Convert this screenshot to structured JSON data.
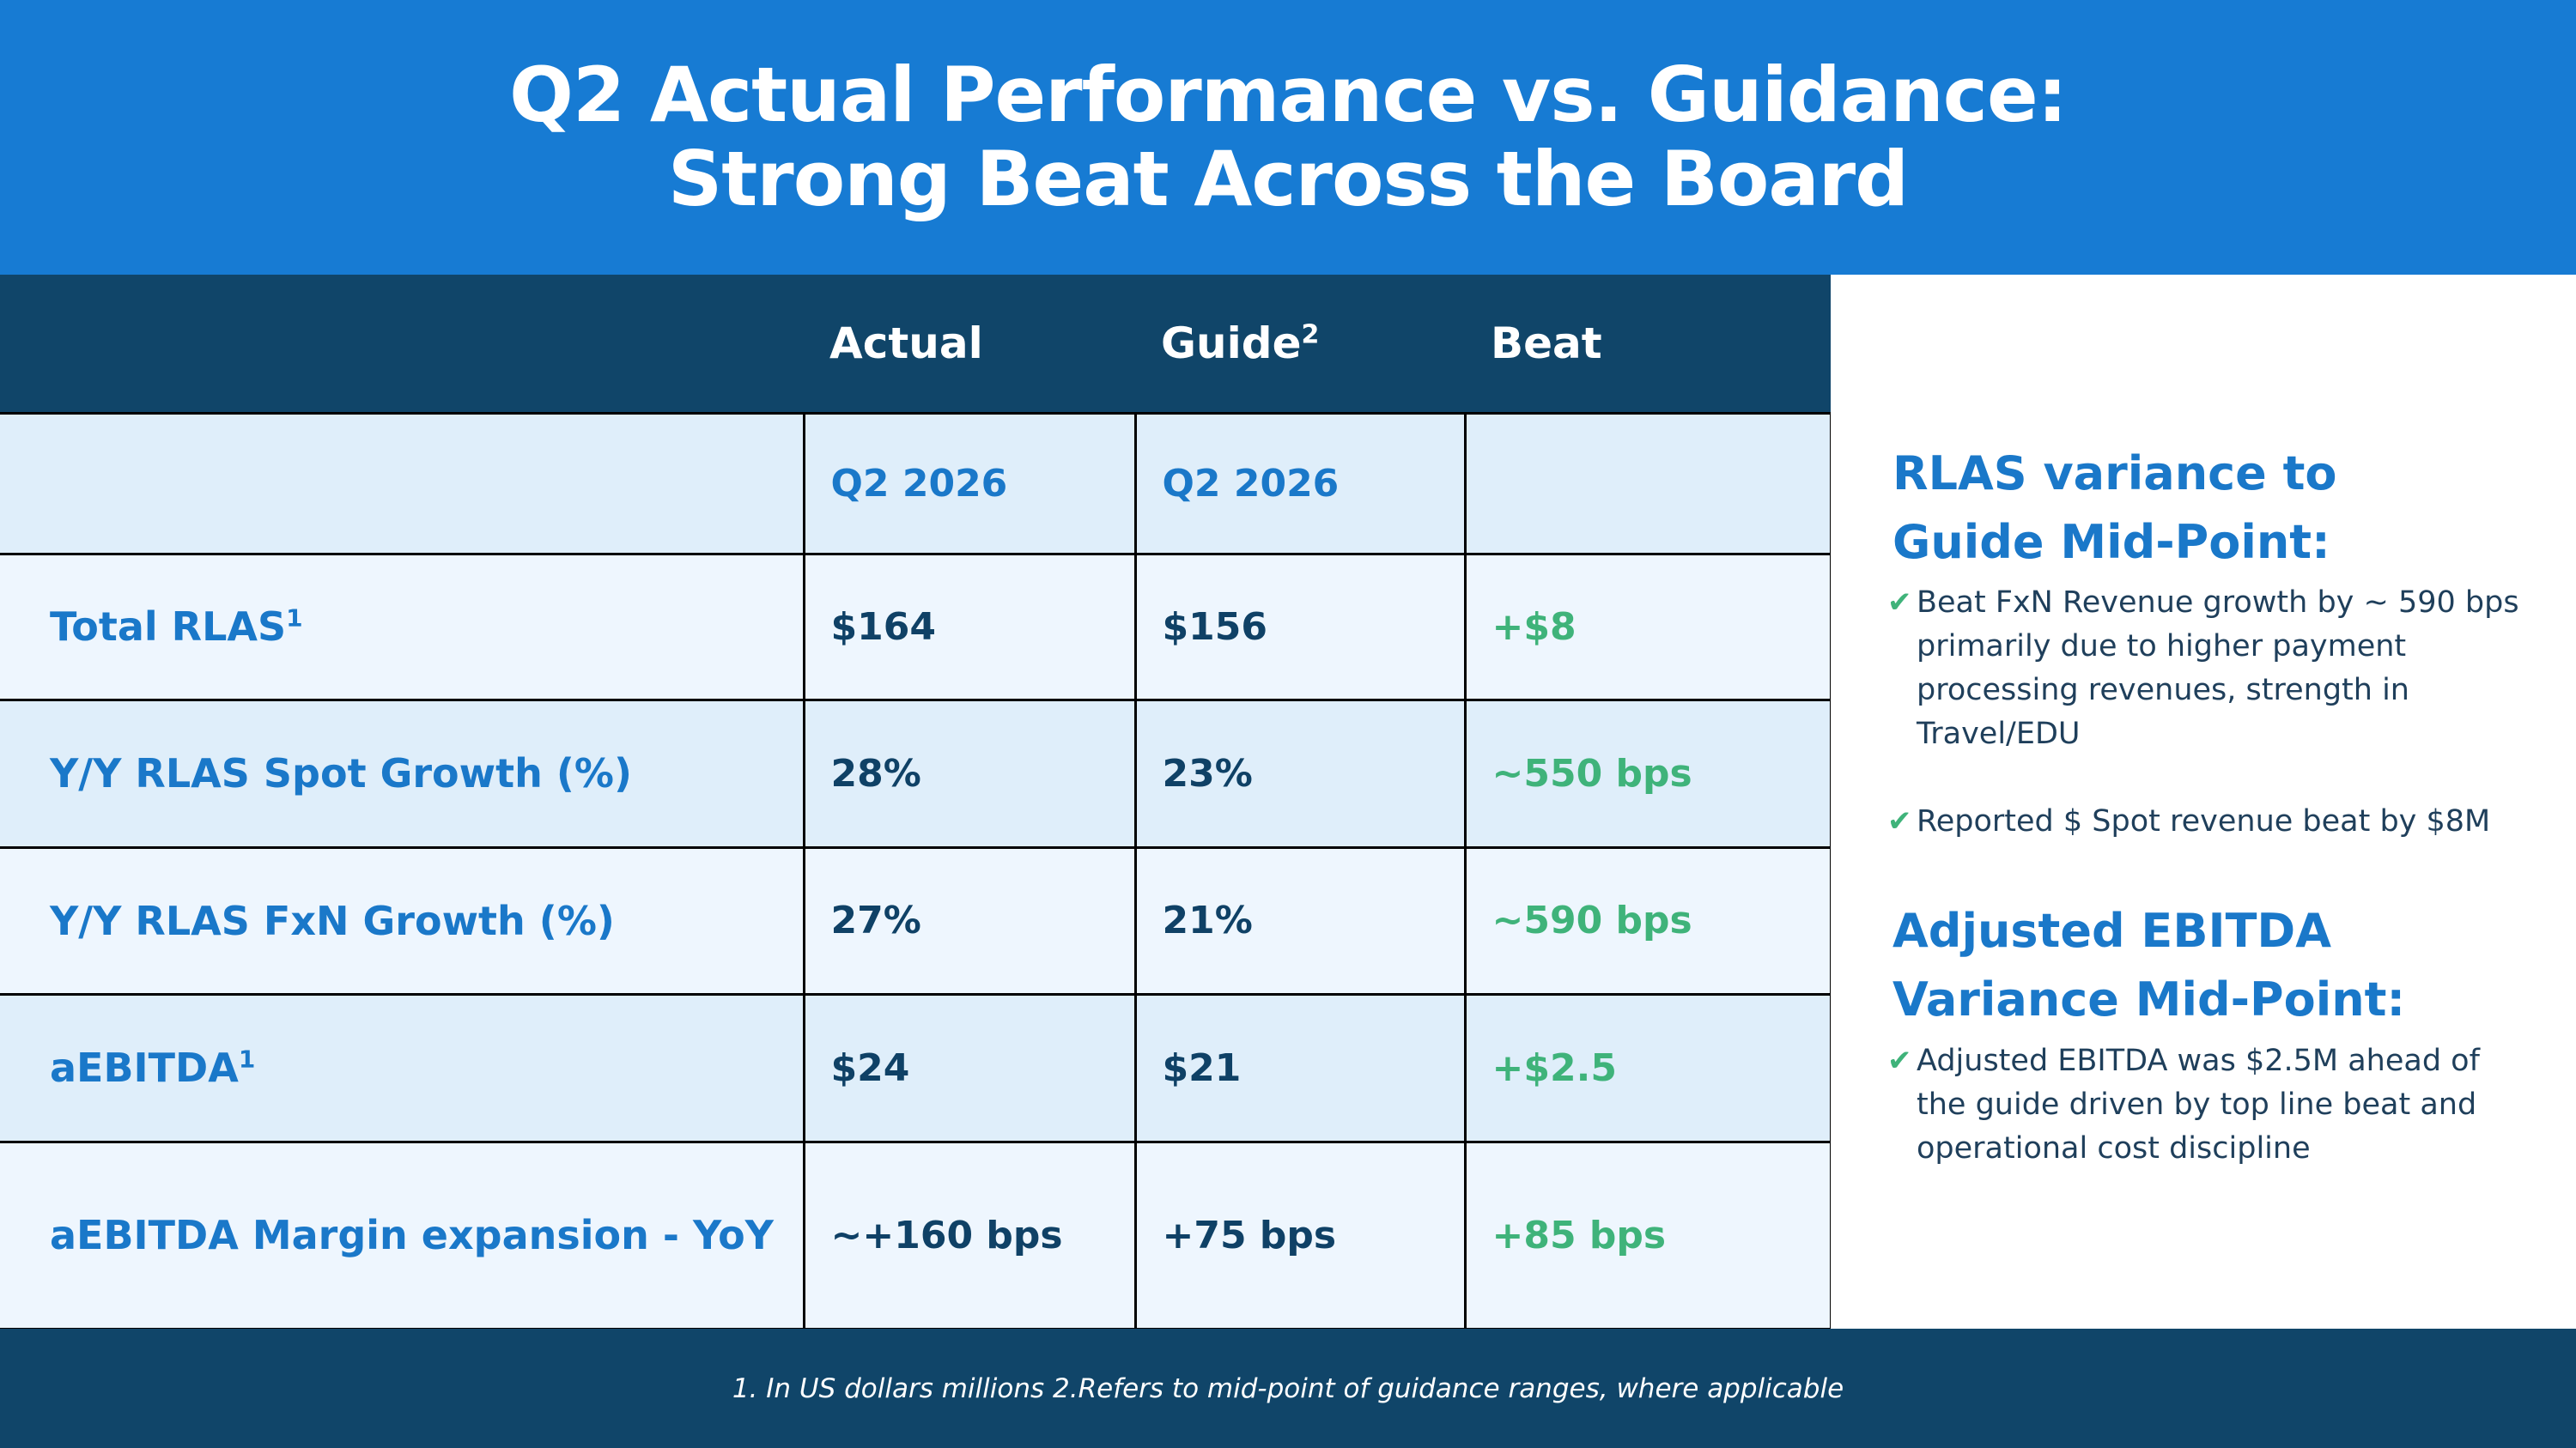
{
  "title": {
    "line1": "Q2 Actual Performance vs. Guidance:",
    "line2": "Strong Beat Across the Board"
  },
  "table": {
    "headers": {
      "actual": "Actual",
      "guide": "Guide",
      "guide_sup": "2",
      "beat": "Beat"
    },
    "subheader": {
      "actual": "Q2 2026",
      "guide": "Q2 2026"
    },
    "rows": [
      {
        "label": "Total RLAS",
        "sup": "1",
        "actual": "$164",
        "guide": "$156",
        "beat": "+$8"
      },
      {
        "label": "Y/Y RLAS Spot Growth (%)",
        "sup": "",
        "actual": "28%",
        "guide": "23%",
        "beat": "~550 bps"
      },
      {
        "label": "Y/Y RLAS FxN Growth (%)",
        "sup": "",
        "actual": "27%",
        "guide": "21%",
        "beat": "~590 bps"
      },
      {
        "label": "aEBITDA",
        "sup": "1",
        "actual": "$24",
        "guide": "$21",
        "beat": "+$2.5"
      },
      {
        "label": "aEBITDA Margin expansion - YoY",
        "sup": "",
        "actual": "~+160 bps",
        "guide": "+75 bps",
        "beat": "+85 bps"
      }
    ]
  },
  "side": {
    "rlas_heading_line1": "RLAS variance to",
    "rlas_heading_line2": "Guide Mid-Point:",
    "rlas_bullets": [
      "Beat FxN Revenue growth by ~ 590 bps primarily due to higher payment processing revenues, strength in Travel/EDU",
      "Reported $ Spot revenue beat by $8M"
    ],
    "ebitda_heading_line1": "Adjusted EBITDA",
    "ebitda_heading_line2": "Variance Mid-Point:",
    "ebitda_bullets": [
      "Adjusted EBITDA  was $2.5M ahead of the guide driven by top line beat and operational cost discipline"
    ],
    "check_glyph": "✔"
  },
  "footer": {
    "note": "1. In US dollars millions  2.Refers to mid-point of guidance ranges, where applicable"
  },
  "colors": {
    "header_blue": "#177bd3",
    "navy": "#104569",
    "label_blue": "#1a78c9",
    "beat_green": "#3fb37a"
  }
}
